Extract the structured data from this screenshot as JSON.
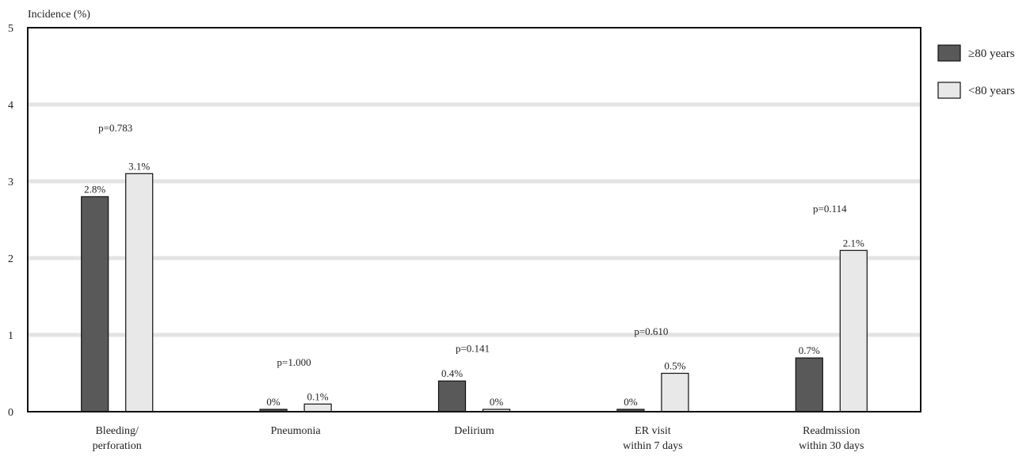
{
  "chart_data": {
    "type": "bar",
    "ylabel": "Incidence (%)",
    "ylim": [
      0,
      5
    ],
    "yticks": [
      "0",
      "1",
      "2",
      "3",
      "4",
      "5"
    ],
    "grid": true,
    "legend_position": "right",
    "categories": [
      [
        "Bleeding/",
        "perforation"
      ],
      [
        "Pneumonia"
      ],
      [
        "Delirium"
      ],
      [
        "ER visit",
        "within 7 days"
      ],
      [
        "Readmission",
        "within 30 days"
      ]
    ],
    "series": [
      {
        "name": "≥80 years",
        "color": "#595959",
        "values": [
          2.8,
          0.0,
          0.4,
          0.0,
          0.7
        ],
        "labels": [
          "2.8%",
          "0%",
          "0.4%",
          "0%",
          "0.7%"
        ]
      },
      {
        "name": "<80 years",
        "color": "#e8e8e8",
        "values": [
          3.1,
          0.1,
          0.0,
          0.5,
          2.1
        ],
        "labels": [
          "3.1%",
          "0.1%",
          "0%",
          "0.5%",
          "2.1%"
        ]
      }
    ],
    "p_values": [
      "p=0.783",
      "p=1.000",
      "p=0.141",
      "p=0.610",
      "p=0.114"
    ],
    "p_value_heights": [
      3.65,
      0.6,
      0.78,
      1.0,
      2.6
    ]
  }
}
